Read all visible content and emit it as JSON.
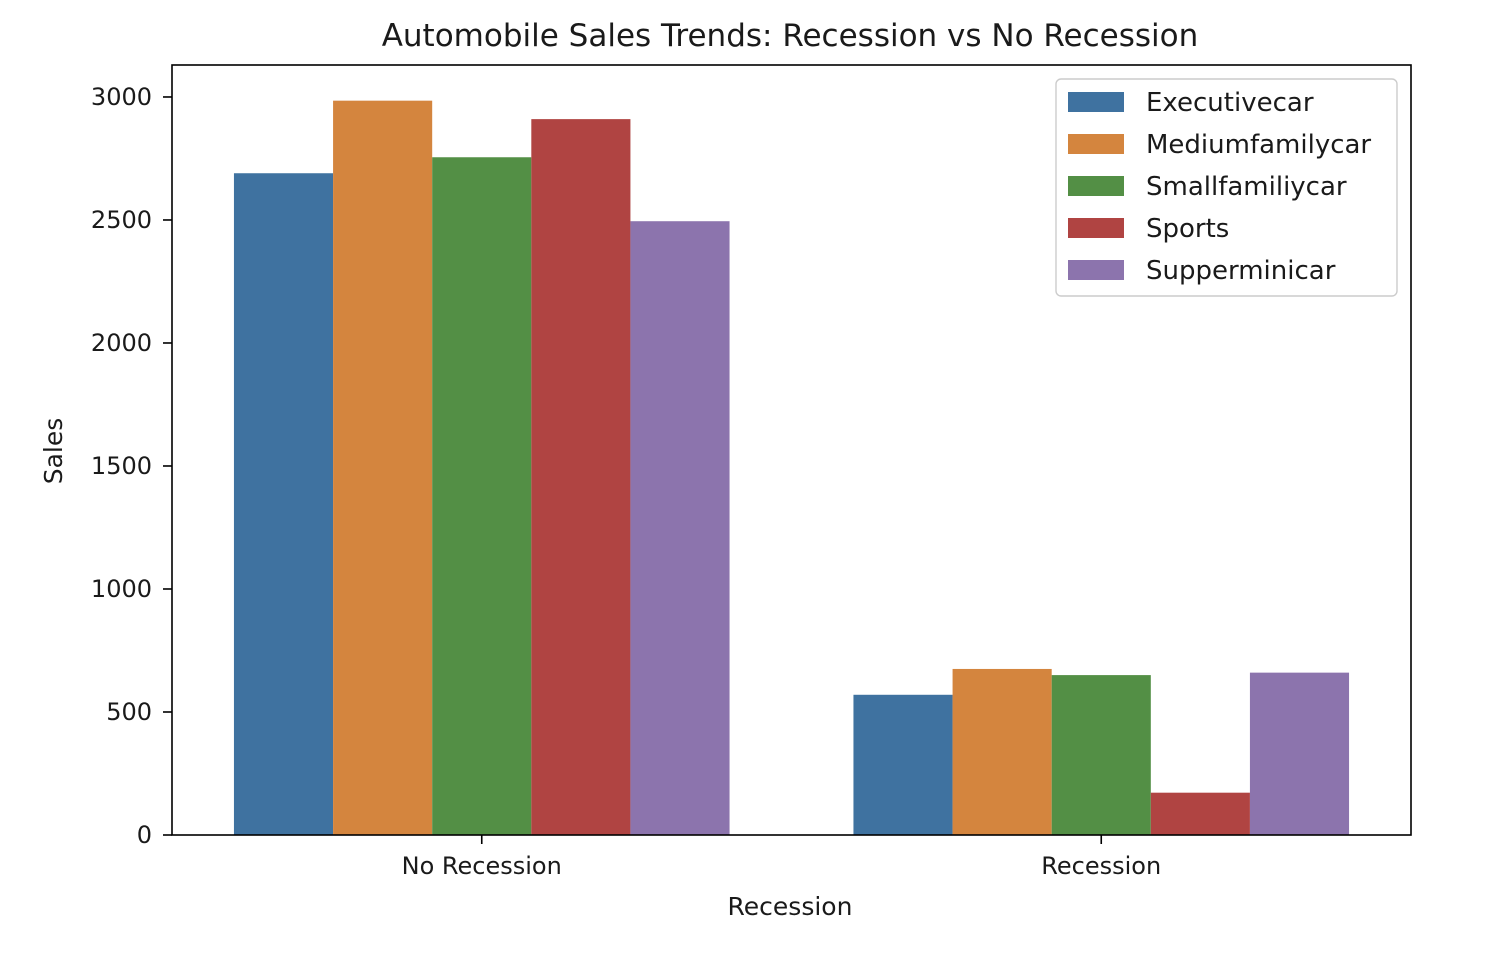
{
  "chart_data": {
    "type": "bar",
    "title": "Automobile Sales Trends: Recession vs No Recession",
    "xlabel": "Recession",
    "ylabel": "Sales",
    "categories": [
      "No Recession",
      "Recession"
    ],
    "ylim": [
      0,
      3130
    ],
    "yticks": [
      0,
      500,
      1000,
      1500,
      2000,
      2500,
      3000
    ],
    "grid": false,
    "legend_position": "top-right",
    "series": [
      {
        "name": "Executivecar",
        "color": "#3f72a0",
        "values": [
          2690,
          570
        ]
      },
      {
        "name": "Mediumfamilycar",
        "color": "#d4853e",
        "values": [
          2985,
          675
        ]
      },
      {
        "name": "Smallfamiliycar",
        "color": "#538f45",
        "values": [
          2755,
          650
        ]
      },
      {
        "name": "Sports",
        "color": "#b04442",
        "values": [
          2910,
          172
        ]
      },
      {
        "name": "Supperminicar",
        "color": "#8c74ad",
        "values": [
          2495,
          660
        ]
      }
    ]
  }
}
